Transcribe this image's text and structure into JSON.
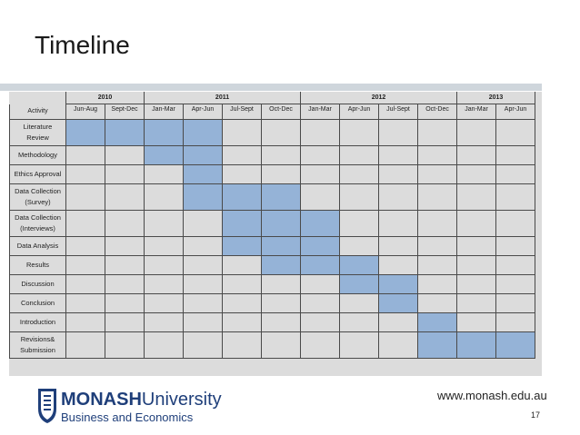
{
  "slide": {
    "title": "Timeline",
    "url": "www.monash.edu.au",
    "page": "17"
  },
  "logo": {
    "name": "MONASH",
    "suffix": "University",
    "faculty": "Business and Economics"
  },
  "table": {
    "activity_header": "Activity",
    "years": [
      {
        "label": "2010",
        "span": 2
      },
      {
        "label": "2011",
        "span": 4
      },
      {
        "label": "2012",
        "span": 4
      },
      {
        "label": "2013",
        "span": 2
      }
    ],
    "periods": [
      "Jun-Aug",
      "Sept-Dec",
      "Jan-Mar",
      "Apr-Jun",
      "Jul-Sept",
      "Oct-Dec",
      "Jan-Mar",
      "Apr-Jun",
      "Jul-Sept",
      "Oct-Dec",
      "Jan-Mar",
      "Apr-Jun"
    ],
    "rows": [
      {
        "lines": [
          "Literature",
          "Review"
        ],
        "active": [
          0,
          1,
          2,
          3
        ]
      },
      {
        "lines": [
          "Methodology"
        ],
        "active": [
          2,
          3
        ]
      },
      {
        "lines": [
          "Ethics Approval"
        ],
        "active": [
          3
        ]
      },
      {
        "lines": [
          "Data Collection",
          "(Survey)"
        ],
        "active": [
          3,
          4,
          5
        ]
      },
      {
        "lines": [
          "Data Collection",
          "(Interviews)"
        ],
        "active": [
          4,
          5,
          6
        ]
      },
      {
        "lines": [
          "Data Analysis"
        ],
        "active": [
          4,
          5,
          6
        ]
      },
      {
        "lines": [
          "Results"
        ],
        "active": [
          5,
          6,
          7
        ]
      },
      {
        "lines": [
          "Discussion"
        ],
        "active": [
          7,
          8
        ]
      },
      {
        "lines": [
          "Conclusion"
        ],
        "active": [
          8
        ]
      },
      {
        "lines": [
          "Introduction"
        ],
        "active": [
          9
        ]
      },
      {
        "lines": [
          "Revisions&",
          "Submission"
        ],
        "active": [
          9,
          10,
          11
        ]
      }
    ]
  },
  "colors": {
    "active": "#95b3d7",
    "table_bg": "#dcdcdc",
    "logo_blue": "#1f3f7a"
  }
}
